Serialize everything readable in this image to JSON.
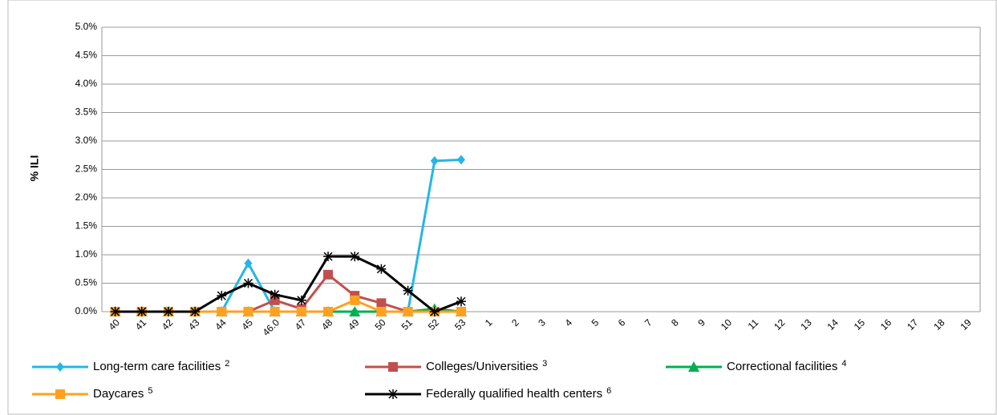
{
  "chart_data": {
    "type": "line",
    "y_label": "% ILI",
    "categories": [
      "40",
      "41",
      "42",
      "43",
      "44",
      "45",
      "46.0",
      "47",
      "48",
      "49",
      "50",
      "51",
      "52",
      "53",
      "1",
      "2",
      "3",
      "4",
      "5",
      "6",
      "7",
      "8",
      "9",
      "10",
      "11",
      "12",
      "13",
      "14",
      "15",
      "16",
      "17",
      "18",
      "19"
    ],
    "ylim": [
      0,
      5.0
    ],
    "yticks": [
      {
        "value": 0,
        "label": "0.0%"
      },
      {
        "value": 0.5,
        "label": "0.5%"
      },
      {
        "value": 1.0,
        "label": "1.0%"
      },
      {
        "value": 1.5,
        "label": "1.5%"
      },
      {
        "value": 2.0,
        "label": "2.0%"
      },
      {
        "value": 2.5,
        "label": "2.5%"
      },
      {
        "value": 3.0,
        "label": "3.0%"
      },
      {
        "value": 3.5,
        "label": "3.5%"
      },
      {
        "value": 4.0,
        "label": "4.0%"
      },
      {
        "value": 4.5,
        "label": "4.5%"
      },
      {
        "value": 5.0,
        "label": "5.0%"
      }
    ],
    "grid": true,
    "series": [
      {
        "name": "Long-term care facilities",
        "sup": "2",
        "color": "#26b5e9",
        "marker": "diamond",
        "values": [
          0,
          0,
          0,
          0,
          0,
          0.85,
          0,
          0,
          0,
          0,
          0,
          0,
          2.65,
          2.67,
          null,
          null,
          null,
          null,
          null,
          null,
          null,
          null,
          null,
          null,
          null,
          null,
          null,
          null,
          null,
          null,
          null,
          null,
          null
        ]
      },
      {
        "name": "Colleges/Universities",
        "sup": "3",
        "color": "#c0504d",
        "marker": "square",
        "values": [
          0,
          0,
          0,
          0,
          0,
          0,
          0.2,
          0.05,
          0.65,
          0.28,
          0.15,
          0,
          0,
          0,
          null,
          null,
          null,
          null,
          null,
          null,
          null,
          null,
          null,
          null,
          null,
          null,
          null,
          null,
          null,
          null,
          null,
          null,
          null
        ]
      },
      {
        "name": "Correctional facilities",
        "sup": "4",
        "color": "#00b050",
        "marker": "triangle",
        "values": [
          0,
          0,
          0,
          0,
          0,
          0,
          0,
          0,
          0,
          0,
          0,
          0,
          0.05,
          0,
          null,
          null,
          null,
          null,
          null,
          null,
          null,
          null,
          null,
          null,
          null,
          null,
          null,
          null,
          null,
          null,
          null,
          null,
          null
        ]
      },
      {
        "name": "Daycares",
        "sup": "5",
        "color": "#ffa020",
        "marker": "square",
        "values": [
          0,
          0,
          0,
          0,
          0,
          0,
          0,
          0,
          0,
          0.2,
          0,
          0,
          0,
          0,
          null,
          null,
          null,
          null,
          null,
          null,
          null,
          null,
          null,
          null,
          null,
          null,
          null,
          null,
          null,
          null,
          null,
          null,
          null
        ]
      },
      {
        "name": "Federally qualified health centers",
        "sup": "6",
        "color": "#000000",
        "marker": "star",
        "values": [
          0,
          0,
          0,
          0,
          0.28,
          0.5,
          0.3,
          0.2,
          0.97,
          0.97,
          0.75,
          0.37,
          0,
          0.18,
          null,
          null,
          null,
          null,
          null,
          null,
          null,
          null,
          null,
          null,
          null,
          null,
          null,
          null,
          null,
          null,
          null,
          null,
          null
        ]
      }
    ]
  }
}
